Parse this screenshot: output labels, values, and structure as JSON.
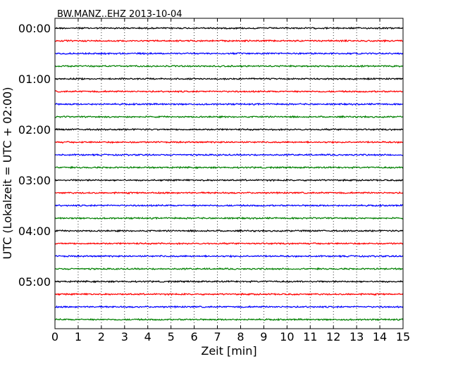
{
  "chart_data": {
    "type": "line",
    "title": "BW.MANZ..EHZ 2013-10-04",
    "xlabel": "Zeit  [min]",
    "ylabel": "UTC (Lokalzeit = UTC + 02:00)",
    "xlim": [
      0,
      15
    ],
    "x_ticks": [
      0,
      1,
      2,
      3,
      4,
      5,
      6,
      7,
      8,
      9,
      10,
      11,
      12,
      13,
      14,
      15
    ],
    "y_tick_labels": [
      "00:00",
      "01:00",
      "02:00",
      "03:00",
      "04:00",
      "05:00"
    ],
    "traces_per_hour": 4,
    "trace_minutes": 15,
    "trace_colors": [
      "#000000",
      "#ff0000",
      "#0000ff",
      "#008000"
    ],
    "grid": "vertical dotted at each minute",
    "series": [
      {
        "start": "00:00"
      },
      {
        "start": "00:15"
      },
      {
        "start": "00:30"
      },
      {
        "start": "00:45"
      },
      {
        "start": "01:00"
      },
      {
        "start": "01:15"
      },
      {
        "start": "01:30"
      },
      {
        "start": "01:45"
      },
      {
        "start": "02:00"
      },
      {
        "start": "02:15"
      },
      {
        "start": "02:30"
      },
      {
        "start": "02:45"
      },
      {
        "start": "03:00"
      },
      {
        "start": "03:15"
      },
      {
        "start": "03:30"
      },
      {
        "start": "03:45"
      },
      {
        "start": "04:00"
      },
      {
        "start": "04:15"
      },
      {
        "start": "04:30"
      },
      {
        "start": "04:45"
      },
      {
        "start": "05:00"
      },
      {
        "start": "05:15"
      },
      {
        "start": "05:30"
      },
      {
        "start": "05:45"
      }
    ]
  }
}
